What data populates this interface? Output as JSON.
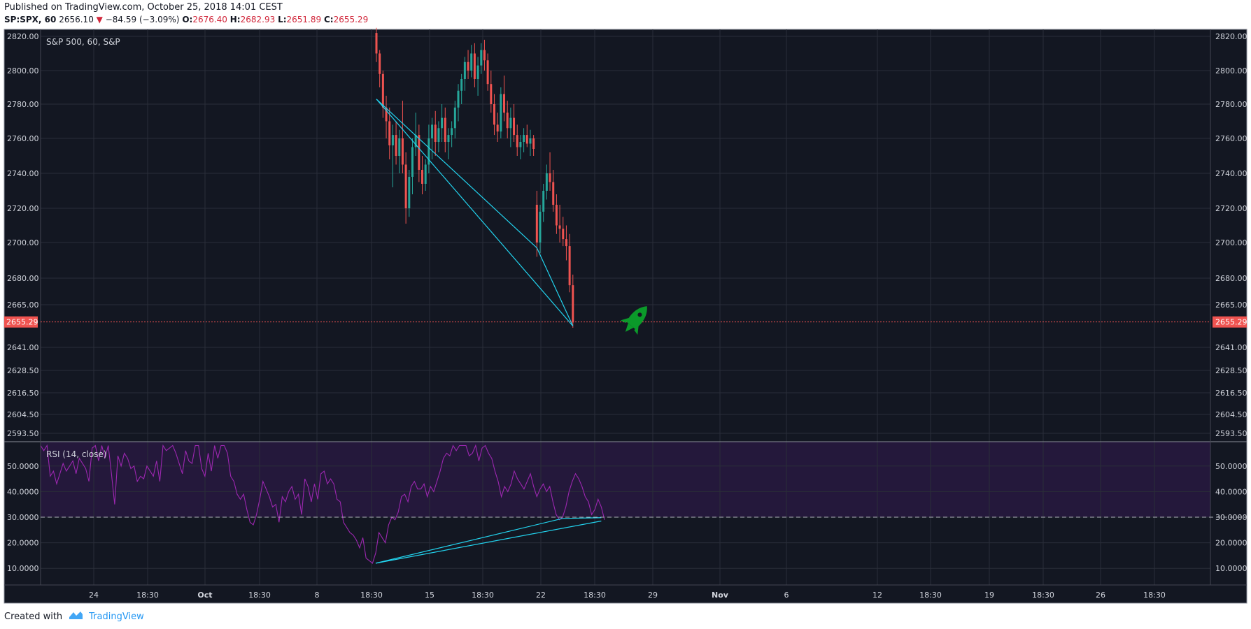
{
  "header": {
    "published": "Published on TradingView.com, October 25, 2018 14:01 CEST",
    "symbol": "SP:SPX, 60",
    "last": "2656.10",
    "change": "−84.59 (−3.09%)",
    "o_label": "O:",
    "o": "2676.40",
    "h_label": "H:",
    "h": "2682.93",
    "l_label": "L:",
    "l": "2651.89",
    "c_label": "C:",
    "c": "2655.29"
  },
  "footer": {
    "created_with": "Created with",
    "brand": "TradingView"
  },
  "colors": {
    "background": "#131722",
    "up": "#26a69a",
    "down": "#ef5350",
    "rsi": "#9c27b0",
    "trend": "#22d3ee",
    "rocket": "#0b9a2a"
  },
  "chart_data": [
    {
      "type": "candlestick",
      "title": "S&P 500, 60, S&P",
      "last_price_label": "2655.29",
      "y_ticks": [
        "2820.00",
        "2800.00",
        "2780.00",
        "2760.00",
        "2740.00",
        "2720.00",
        "2700.00",
        "2680.00",
        "2665.00",
        "2641.00",
        "2628.50",
        "2616.50",
        "2604.50",
        "2593.50"
      ],
      "x_ticks": [
        "24",
        "18:30",
        "Oct",
        "18:30",
        "8",
        "18:30",
        "15",
        "18:30",
        "22",
        "18:30",
        "29",
        "Nov",
        "6",
        "12",
        "18:30",
        "19",
        "18:30",
        "26",
        "18:30"
      ],
      "ohlc_rows_open_high_low_close": [
        [
          2822,
          2825,
          2805,
          2810
        ],
        [
          2810,
          2812,
          2790,
          2798
        ],
        [
          2798,
          2800,
          2772,
          2778
        ],
        [
          2778,
          2785,
          2760,
          2770
        ],
        [
          2770,
          2778,
          2748,
          2756
        ],
        [
          2756,
          2768,
          2732,
          2762
        ],
        [
          2762,
          2770,
          2745,
          2750
        ],
        [
          2750,
          2765,
          2740,
          2760
        ],
        [
          2760,
          2782,
          2740,
          2745
        ],
        [
          2745,
          2752,
          2711,
          2720
        ],
        [
          2720,
          2742,
          2715,
          2738
        ],
        [
          2738,
          2760,
          2728,
          2755
        ],
        [
          2755,
          2775,
          2750,
          2762
        ],
        [
          2762,
          2768,
          2735,
          2742
        ],
        [
          2742,
          2750,
          2728,
          2734
        ],
        [
          2734,
          2748,
          2730,
          2745
        ],
        [
          2745,
          2768,
          2740,
          2760
        ],
        [
          2760,
          2772,
          2748,
          2768
        ],
        [
          2768,
          2776,
          2750,
          2758
        ],
        [
          2758,
          2770,
          2752,
          2766
        ],
        [
          2766,
          2780,
          2758,
          2772
        ],
        [
          2772,
          2778,
          2752,
          2758
        ],
        [
          2758,
          2766,
          2748,
          2762
        ],
        [
          2762,
          2770,
          2755,
          2766
        ],
        [
          2766,
          2782,
          2760,
          2778
        ],
        [
          2778,
          2792,
          2770,
          2788
        ],
        [
          2788,
          2798,
          2780,
          2795
        ],
        [
          2795,
          2808,
          2788,
          2805
        ],
        [
          2805,
          2812,
          2795,
          2800
        ],
        [
          2800,
          2815,
          2796,
          2810
        ],
        [
          2810,
          2816,
          2790,
          2795
        ],
        [
          2795,
          2808,
          2785,
          2803
        ],
        [
          2803,
          2816,
          2798,
          2812
        ],
        [
          2812,
          2818,
          2800,
          2806
        ],
        [
          2806,
          2810,
          2788,
          2792
        ],
        [
          2792,
          2800,
          2775,
          2780
        ],
        [
          2780,
          2786,
          2762,
          2768
        ],
        [
          2768,
          2775,
          2758,
          2764
        ],
        [
          2764,
          2790,
          2760,
          2786
        ],
        [
          2786,
          2797,
          2770,
          2775
        ],
        [
          2775,
          2782,
          2760,
          2766
        ],
        [
          2766,
          2778,
          2755,
          2772
        ],
        [
          2772,
          2780,
          2758,
          2762
        ],
        [
          2762,
          2768,
          2750,
          2755
        ],
        [
          2755,
          2762,
          2748,
          2758
        ],
        [
          2758,
          2766,
          2752,
          2762
        ],
        [
          2762,
          2768,
          2755,
          2757
        ],
        [
          2757,
          2765,
          2750,
          2760
        ],
        [
          2760,
          2762,
          2750,
          2754
        ],
        [
          2722,
          2730,
          2692,
          2700
        ],
        [
          2700,
          2722,
          2694,
          2718
        ],
        [
          2718,
          2734,
          2712,
          2730
        ],
        [
          2730,
          2745,
          2725,
          2740
        ],
        [
          2740,
          2752,
          2730,
          2735
        ],
        [
          2735,
          2742,
          2718,
          2722
        ],
        [
          2722,
          2728,
          2705,
          2710
        ],
        [
          2710,
          2722,
          2700,
          2708
        ],
        [
          2708,
          2715,
          2698,
          2702
        ],
        [
          2702,
          2710,
          2690,
          2698
        ],
        [
          2698,
          2705,
          2672,
          2676
        ],
        [
          2676,
          2682,
          2652,
          2655
        ]
      ],
      "trendlines_price": [
        {
          "from": [
            0,
            2783
          ],
          "to": [
            60,
            2653
          ]
        },
        {
          "from": [
            0,
            2783
          ],
          "to": [
            49,
            2697
          ]
        },
        {
          "from": [
            49,
            2697
          ],
          "to": [
            60,
            2653
          ]
        }
      ]
    },
    {
      "type": "line",
      "title": "RSI (14, close)",
      "y_ticks": [
        "50.0000",
        "40.0000",
        "30.0000",
        "20.0000",
        "10.0000"
      ],
      "level": 30,
      "band": [
        30,
        70
      ],
      "values": [
        60,
        56,
        58,
        46,
        48,
        43,
        47,
        51,
        48,
        50,
        52,
        47,
        53,
        51,
        49,
        44,
        57,
        59,
        52,
        61,
        53,
        62,
        47,
        35,
        54,
        50,
        55,
        53,
        49,
        50,
        44,
        46,
        45,
        50,
        48,
        46,
        52,
        44,
        60,
        56,
        57,
        64,
        55,
        51,
        47,
        56,
        52,
        51,
        59,
        58,
        49,
        46,
        55,
        48,
        60,
        53,
        58,
        59,
        55,
        46,
        44,
        39,
        37,
        39,
        33,
        28,
        27,
        31,
        37,
        44,
        41,
        38,
        34,
        35,
        28,
        38,
        36,
        40,
        42,
        37,
        39,
        31,
        45,
        42,
        36,
        43,
        37,
        47,
        48,
        43,
        45,
        43,
        37,
        36,
        28,
        26,
        24,
        23,
        21,
        18,
        22,
        14,
        13,
        12,
        16,
        24,
        22,
        20,
        27,
        30,
        29,
        32,
        38,
        39,
        36,
        42,
        44,
        41,
        41,
        43,
        38,
        42,
        40,
        44,
        48,
        53,
        55,
        54,
        58,
        56,
        60,
        58,
        60,
        54,
        55,
        58,
        52,
        57,
        59,
        55,
        53,
        48,
        44,
        38,
        42,
        40,
        43,
        48,
        45,
        43,
        41,
        44,
        47,
        42,
        38,
        41,
        43,
        40,
        42,
        36,
        31,
        29,
        30,
        34,
        40,
        44,
        47,
        45,
        42,
        38,
        36,
        31,
        33,
        37,
        34,
        29
      ],
      "trendlines": [
        {
          "from": [
            104,
            12
          ],
          "to": [
            174,
            28.5
          ]
        },
        {
          "from": [
            104,
            12
          ],
          "to": [
            162,
            29.5
          ]
        },
        {
          "from": [
            162,
            29.5
          ],
          "to": [
            174,
            29.8
          ]
        }
      ]
    }
  ]
}
